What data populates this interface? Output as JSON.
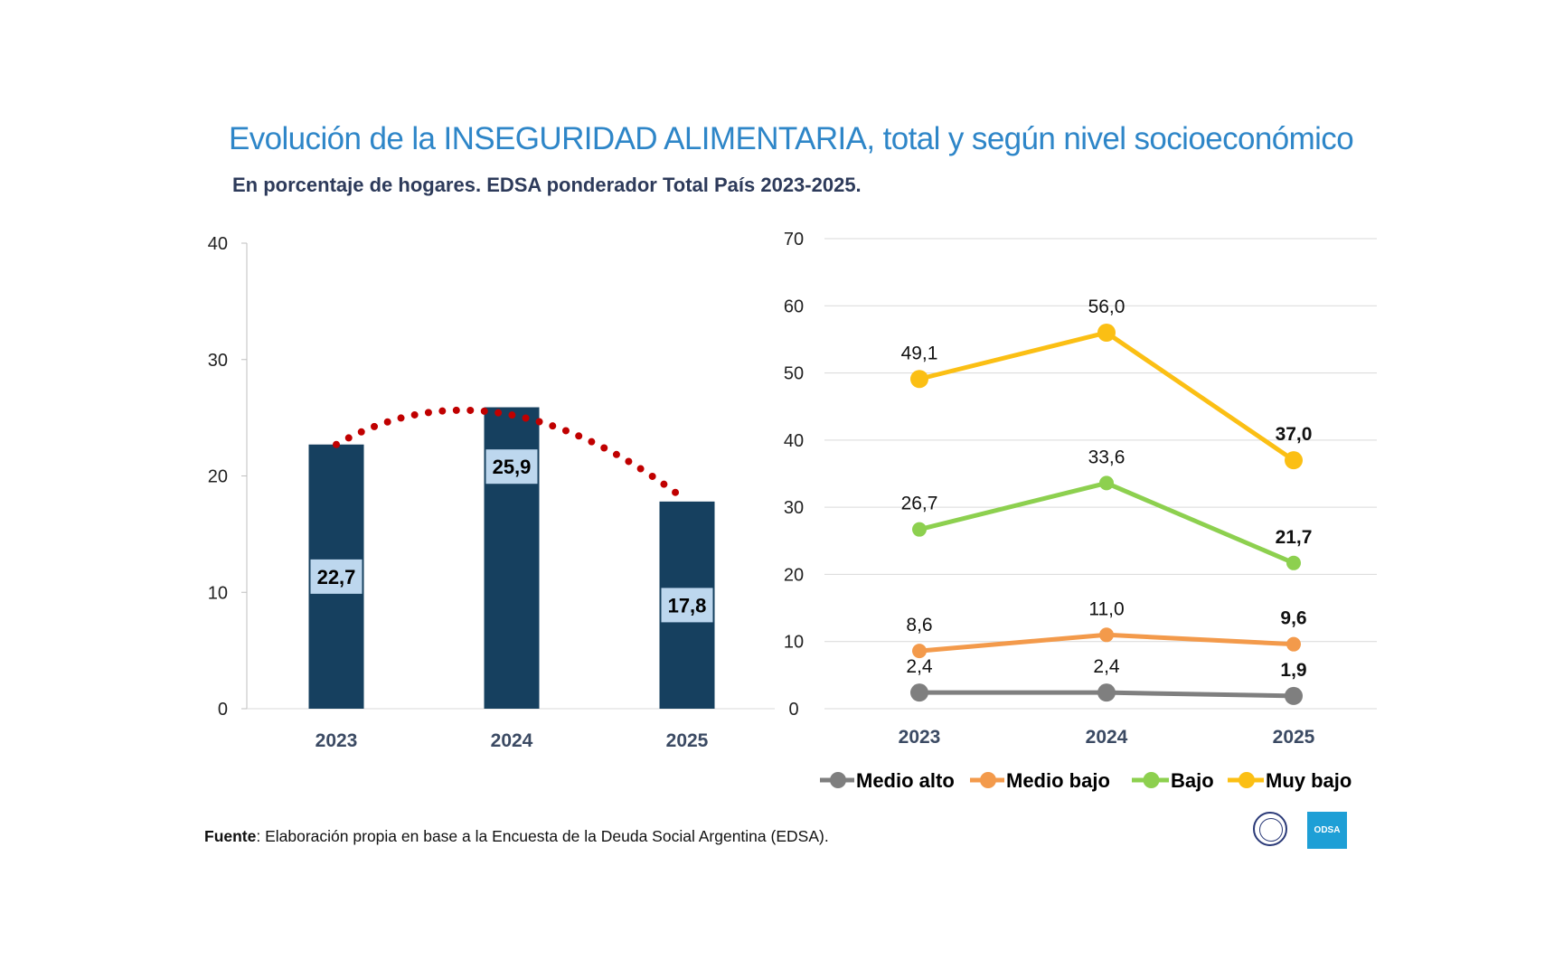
{
  "title": "Evolución de la INSEGURIDAD ALIMENTARIA, total y según nivel socioeconómico",
  "subtitle": "En porcentaje de hogares. EDSA ponderador Total País 2023-2025.",
  "footer": {
    "label": "Fuente",
    "text": ": Elaboración propia en base a la Encuesta de la Deuda Social Argentina (EDSA)."
  },
  "logos": {
    "seal": "Universidad Católica Argentina seal",
    "odsa": "ODSA"
  },
  "chart_data": [
    {
      "type": "bar",
      "categories": [
        "2023",
        "2024",
        "2025"
      ],
      "values": [
        22.7,
        25.9,
        17.8
      ],
      "data_labels": [
        "22,7",
        "25,9",
        "17,8"
      ],
      "ylim": [
        0,
        40
      ],
      "yticks": [
        "0",
        "10",
        "20",
        "30",
        "40"
      ],
      "trendline": "dotted curve",
      "colors": {
        "bar": "#16405f",
        "label_bg": "#bdd7ee",
        "trend": "#c00000"
      }
    },
    {
      "type": "line",
      "categories": [
        "2023",
        "2024",
        "2025"
      ],
      "ylim": [
        0,
        70
      ],
      "yticks": [
        "0",
        "10",
        "20",
        "30",
        "40",
        "50",
        "60",
        "70"
      ],
      "grid": true,
      "legend": "bottom",
      "series": [
        {
          "name": "Medio alto",
          "values": [
            2.4,
            2.4,
            1.9
          ],
          "labels": [
            "2,4",
            "2,4",
            "1,9"
          ],
          "color": "#7f7f7f"
        },
        {
          "name": "Medio bajo",
          "values": [
            8.6,
            11.0,
            9.6
          ],
          "labels": [
            "8,6",
            "11,0",
            "9,6"
          ],
          "color": "#f39a4b"
        },
        {
          "name": "Bajo",
          "values": [
            26.7,
            33.6,
            21.7
          ],
          "labels": [
            "26,7",
            "33,6",
            "21,7"
          ],
          "color": "#8dd04f"
        },
        {
          "name": "Muy bajo",
          "values": [
            49.1,
            56.0,
            37.0
          ],
          "labels": [
            "49,1",
            "56,0",
            "37,0"
          ],
          "color": "#fbbf14"
        }
      ]
    }
  ]
}
